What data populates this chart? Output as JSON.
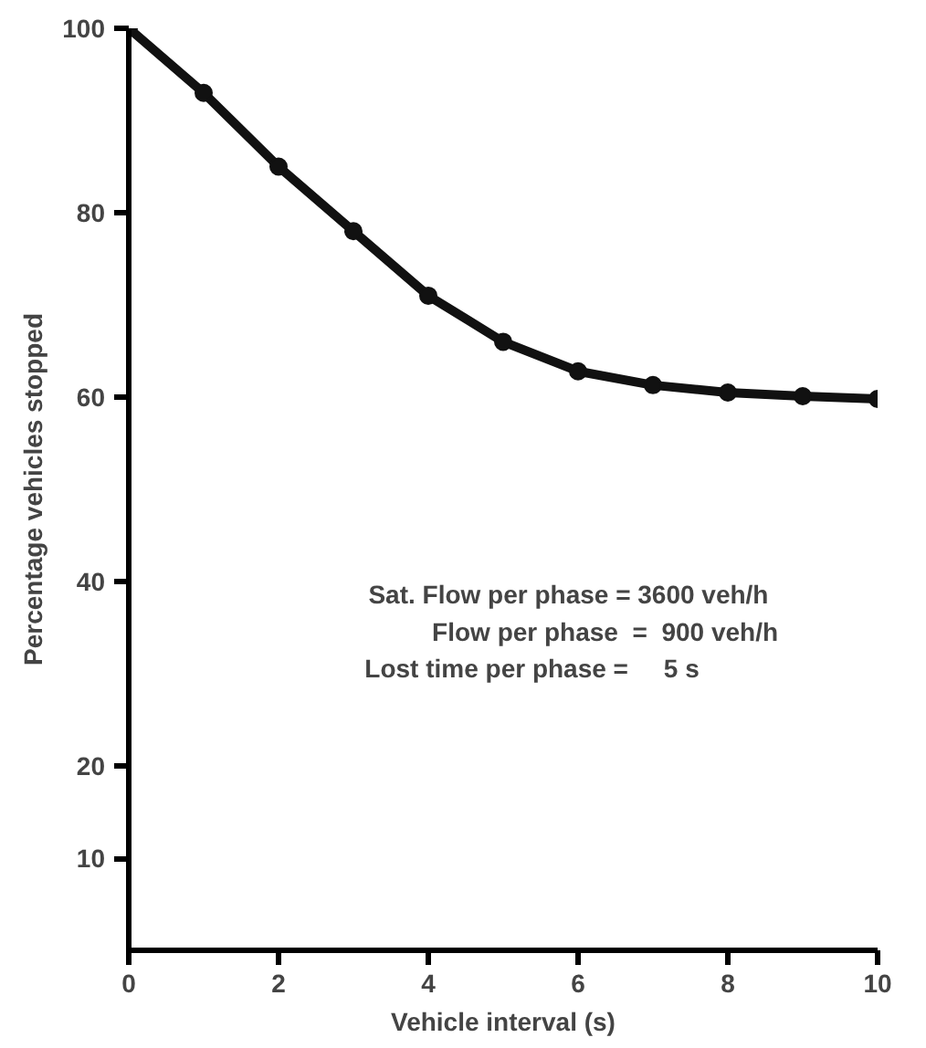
{
  "chart_data": {
    "type": "line",
    "xlabel": "Vehicle interval (s)",
    "ylabel": "Percentage vehicles stopped",
    "x": [
      0,
      1,
      2,
      3,
      4,
      5,
      6,
      7,
      8,
      9,
      10
    ],
    "series": [
      {
        "color": "#111111",
        "values": [
          100,
          93,
          85,
          78,
          71,
          66,
          62.8,
          61.3,
          60.5,
          60.1,
          59.8
        ]
      }
    ],
    "xlim": [
      0,
      10
    ],
    "ylim": [
      0,
      100
    ],
    "xticks": [
      0,
      2,
      4,
      6,
      8,
      10
    ],
    "yticks": [
      10,
      20,
      40,
      60,
      80,
      100
    ],
    "marker": "circle",
    "line_style": "solid",
    "grid": false,
    "annotations": [
      "Sat. Flow per phase = 3600 veh/h",
      "Flow per phase  =  900 veh/h",
      "Lost time per phase =     5 s"
    ]
  }
}
